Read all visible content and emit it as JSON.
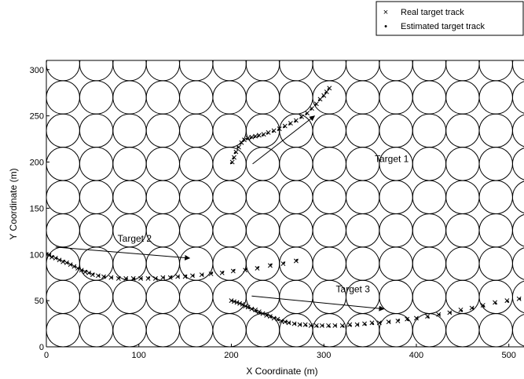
{
  "chart_data": {
    "type": "scatter",
    "xlabel": "X Coordinate (m)",
    "ylabel": "Y Coordinate (m)",
    "xlim": [
      0,
      550
    ],
    "ylim": [
      0,
      310
    ],
    "xticks": [
      0,
      100,
      200,
      300,
      400,
      500
    ],
    "yticks": [
      0,
      50,
      100,
      150,
      200,
      250,
      300
    ],
    "legend_position": "top-right",
    "legend": [
      {
        "marker": "×",
        "label": "Real target track"
      },
      {
        "marker": "•",
        "label": "Estimated target track"
      }
    ],
    "sensor_grid": {
      "spacing": 36,
      "radius": 18,
      "columns": 16,
      "rows": 9
    },
    "annotations": [
      {
        "text": "Target 1",
        "text_at": [
          355,
          200
        ],
        "arrow_from": [
          223,
          198
        ],
        "arrow_to": [
          290,
          250
        ]
      },
      {
        "text": "Target 2",
        "text_at": [
          77,
          114
        ],
        "arrow_from": [
          10,
          108
        ],
        "arrow_to": [
          155,
          96
        ]
      },
      {
        "text": "Target 3",
        "text_at": [
          313,
          59
        ],
        "arrow_from": [
          222,
          55
        ],
        "arrow_to": [
          365,
          41
        ]
      }
    ],
    "series": [
      {
        "name": "Real target track",
        "marker": "x",
        "tracks": [
          [
            [
              201,
              200
            ],
            [
              203,
              205
            ],
            [
              205,
              211
            ],
            [
              208,
              216
            ],
            [
              211,
              221
            ],
            [
              214,
              224
            ],
            [
              218,
              226
            ],
            [
              222,
              227
            ],
            [
              226,
              228
            ],
            [
              230,
              229
            ],
            [
              235,
              230
            ],
            [
              240,
              232
            ],
            [
              246,
              234
            ],
            [
              252,
              236
            ],
            [
              258,
              239
            ],
            [
              264,
              242
            ],
            [
              270,
              245
            ],
            [
              276,
              249
            ],
            [
              282,
              253
            ],
            [
              287,
              258
            ],
            [
              292,
              263
            ],
            [
              296,
              268
            ],
            [
              300,
              272
            ],
            [
              303,
              276
            ],
            [
              306,
              280
            ]
          ],
          [
            [
              0,
              100
            ],
            [
              3,
              99
            ],
            [
              6,
              97
            ],
            [
              10,
              96
            ],
            [
              14,
              94
            ],
            [
              18,
              92
            ],
            [
              22,
              91
            ],
            [
              26,
              89
            ],
            [
              30,
              87
            ],
            [
              34,
              85
            ],
            [
              38,
              83
            ],
            [
              42,
              81
            ],
            [
              46,
              80
            ],
            [
              50,
              78
            ],
            [
              56,
              77
            ],
            [
              62,
              76
            ],
            [
              70,
              75
            ],
            [
              78,
              74
            ],
            [
              86,
              74
            ],
            [
              94,
              74
            ],
            [
              102,
              74
            ],
            [
              110,
              74
            ],
            [
              118,
              74
            ],
            [
              126,
              75
            ],
            [
              134,
              75
            ],
            [
              142,
              76
            ],
            [
              150,
              76
            ],
            [
              158,
              77
            ],
            [
              168,
              78
            ],
            [
              178,
              79
            ],
            [
              190,
              80
            ],
            [
              202,
              82
            ],
            [
              215,
              83
            ],
            [
              228,
              85
            ],
            [
              242,
              88
            ],
            [
              256,
              90
            ],
            [
              270,
              93
            ]
          ],
          [
            [
              200,
              50
            ],
            [
              203,
              49
            ],
            [
              206,
              48
            ],
            [
              209,
              47
            ],
            [
              212,
              46
            ],
            [
              215,
              44
            ],
            [
              218,
              43
            ],
            [
              222,
              41
            ],
            [
              226,
              40
            ],
            [
              230,
              38
            ],
            [
              234,
              36
            ],
            [
              238,
              34
            ],
            [
              242,
              33
            ],
            [
              246,
              31
            ],
            [
              250,
              30
            ],
            [
              254,
              28
            ],
            [
              258,
              27
            ],
            [
              262,
              26
            ],
            [
              268,
              25
            ],
            [
              274,
              24
            ],
            [
              280,
              24
            ],
            [
              286,
              23
            ],
            [
              292,
              23
            ],
            [
              298,
              23
            ],
            [
              305,
              23
            ],
            [
              312,
              23
            ],
            [
              320,
              23
            ],
            [
              328,
              24
            ],
            [
              336,
              24
            ],
            [
              344,
              25
            ],
            [
              352,
              26
            ],
            [
              360,
              26
            ],
            [
              370,
              27
            ],
            [
              380,
              28
            ],
            [
              390,
              30
            ],
            [
              400,
              31
            ],
            [
              412,
              33
            ],
            [
              424,
              35
            ],
            [
              436,
              37
            ],
            [
              448,
              40
            ],
            [
              460,
              42
            ],
            [
              472,
              45
            ],
            [
              485,
              48
            ],
            [
              498,
              50
            ],
            [
              511,
              52
            ]
          ]
        ]
      },
      {
        "name": "Estimated target track",
        "marker": "dot",
        "tracks": [
          [
            [
              200,
              199
            ],
            [
              202,
              204
            ],
            [
              204,
              210
            ],
            [
              207,
              216
            ],
            [
              210,
              220
            ],
            [
              213,
              223
            ],
            [
              217,
              225
            ],
            [
              221,
              226
            ],
            [
              225,
              227
            ],
            [
              229,
              228
            ],
            [
              234,
              229
            ],
            [
              239,
              231
            ],
            [
              245,
              233
            ],
            [
              251,
              235
            ],
            [
              257,
              238
            ],
            [
              263,
              241
            ],
            [
              269,
              244
            ],
            [
              275,
              248
            ],
            [
              281,
              252
            ],
            [
              286,
              257
            ],
            [
              291,
              262
            ],
            [
              295,
              267
            ],
            [
              299,
              271
            ],
            [
              302,
              275
            ],
            [
              305,
              279
            ]
          ],
          [
            [
              1,
              101
            ],
            [
              4,
              99
            ],
            [
              7,
              98
            ],
            [
              11,
              96
            ],
            [
              15,
              94
            ],
            [
              19,
              93
            ],
            [
              23,
              91
            ],
            [
              27,
              89
            ],
            [
              31,
              87
            ],
            [
              35,
              85
            ],
            [
              39,
              83
            ],
            [
              43,
              82
            ],
            [
              47,
              80
            ],
            [
              51,
              79
            ],
            [
              57,
              77
            ],
            [
              63,
              76
            ],
            [
              71,
              75
            ],
            [
              79,
              75
            ],
            [
              87,
              74
            ],
            [
              95,
              74
            ],
            [
              103,
              74
            ],
            [
              111,
              75
            ],
            [
              119,
              74
            ],
            [
              127,
              75
            ],
            [
              135,
              76
            ],
            [
              143,
              76
            ],
            [
              151,
              77
            ],
            [
              159,
              77
            ],
            [
              169,
              78
            ],
            [
              179,
              80
            ],
            [
              191,
              81
            ],
            [
              203,
              83
            ],
            [
              216,
              84
            ],
            [
              229,
              86
            ],
            [
              243,
              89
            ],
            [
              257,
              91
            ],
            [
              271,
              94
            ]
          ],
          [
            [
              201,
              50
            ],
            [
              204,
              49
            ],
            [
              207,
              48
            ],
            [
              210,
              47
            ],
            [
              213,
              45
            ],
            [
              216,
              44
            ],
            [
              219,
              42
            ],
            [
              223,
              41
            ],
            [
              227,
              39
            ],
            [
              231,
              37
            ],
            [
              235,
              36
            ],
            [
              239,
              34
            ],
            [
              243,
              32
            ],
            [
              247,
              31
            ],
            [
              251,
              29
            ],
            [
              255,
              28
            ],
            [
              259,
              27
            ],
            [
              263,
              26
            ],
            [
              269,
              25
            ],
            [
              275,
              24
            ],
            [
              281,
              23
            ],
            [
              287,
              23
            ],
            [
              293,
              22
            ],
            [
              299,
              23
            ],
            [
              306,
              22
            ],
            [
              313,
              23
            ],
            [
              321,
              22
            ],
            [
              329,
              23
            ],
            [
              337,
              24
            ],
            [
              345,
              24
            ],
            [
              353,
              25
            ],
            [
              361,
              26
            ],
            [
              371,
              27
            ],
            [
              381,
              29
            ],
            [
              391,
              29
            ],
            [
              401,
              31
            ],
            [
              413,
              32
            ],
            [
              425,
              35
            ],
            [
              437,
              37
            ],
            [
              449,
              39
            ],
            [
              461,
              42
            ],
            [
              473,
              44
            ],
            [
              486,
              47
            ],
            [
              499,
              49
            ],
            [
              512,
              52
            ]
          ]
        ]
      }
    ]
  }
}
